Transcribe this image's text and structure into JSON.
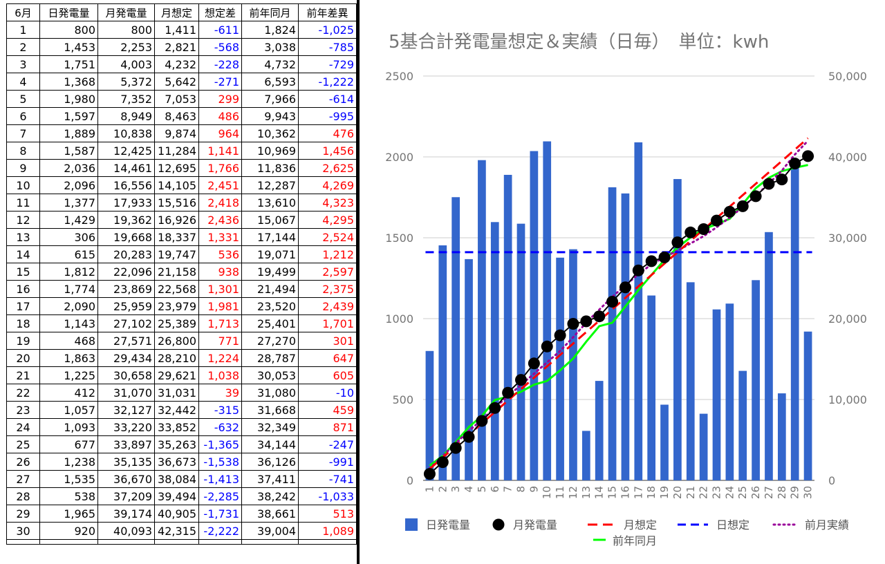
{
  "table": {
    "headers": [
      "6月",
      "日発電量",
      "月発電量",
      "月想定",
      "想定差",
      "前年同月",
      "前年差異"
    ],
    "rows": [
      [
        "1",
        "800",
        "800",
        "1,411",
        "-611",
        "1,824",
        "-1,025"
      ],
      [
        "2",
        "1,453",
        "2,253",
        "2,821",
        "-568",
        "3,038",
        "-785"
      ],
      [
        "3",
        "1,751",
        "4,003",
        "4,232",
        "-228",
        "4,732",
        "-729"
      ],
      [
        "4",
        "1,368",
        "5,372",
        "5,642",
        "-271",
        "6,593",
        "-1,222"
      ],
      [
        "5",
        "1,980",
        "7,352",
        "7,053",
        "299",
        "7,966",
        "-614"
      ],
      [
        "6",
        "1,597",
        "8,949",
        "8,463",
        "486",
        "9,943",
        "-995"
      ],
      [
        "7",
        "1,889",
        "10,838",
        "9,874",
        "964",
        "10,362",
        "476"
      ],
      [
        "8",
        "1,587",
        "12,425",
        "11,284",
        "1,141",
        "10,969",
        "1,456"
      ],
      [
        "9",
        "2,036",
        "14,461",
        "12,695",
        "1,766",
        "11,836",
        "2,625"
      ],
      [
        "10",
        "2,096",
        "16,556",
        "14,105",
        "2,451",
        "12,287",
        "4,269"
      ],
      [
        "11",
        "1,377",
        "17,933",
        "15,516",
        "2,418",
        "13,610",
        "4,323"
      ],
      [
        "12",
        "1,429",
        "19,362",
        "16,926",
        "2,436",
        "15,067",
        "4,295"
      ],
      [
        "13",
        "306",
        "19,668",
        "18,337",
        "1,331",
        "17,144",
        "2,524"
      ],
      [
        "14",
        "615",
        "20,283",
        "19,747",
        "536",
        "19,071",
        "1,212"
      ],
      [
        "15",
        "1,812",
        "22,096",
        "21,158",
        "938",
        "19,499",
        "2,597"
      ],
      [
        "16",
        "1,774",
        "23,869",
        "22,568",
        "1,301",
        "21,494",
        "2,375"
      ],
      [
        "17",
        "2,090",
        "25,959",
        "23,979",
        "1,981",
        "23,520",
        "2,439"
      ],
      [
        "18",
        "1,143",
        "27,102",
        "25,389",
        "1,713",
        "25,401",
        "1,701"
      ],
      [
        "19",
        "468",
        "27,571",
        "26,800",
        "771",
        "27,270",
        "301"
      ],
      [
        "20",
        "1,863",
        "29,434",
        "28,210",
        "1,224",
        "28,787",
        "647"
      ],
      [
        "21",
        "1,225",
        "30,658",
        "29,621",
        "1,038",
        "30,053",
        "605"
      ],
      [
        "22",
        "412",
        "31,070",
        "31,031",
        "39",
        "31,080",
        "-10"
      ],
      [
        "23",
        "1,057",
        "32,127",
        "32,442",
        "-315",
        "31,668",
        "459"
      ],
      [
        "24",
        "1,093",
        "33,220",
        "33,852",
        "-632",
        "32,349",
        "871"
      ],
      [
        "25",
        "677",
        "33,897",
        "35,263",
        "-1,365",
        "34,144",
        "-247"
      ],
      [
        "26",
        "1,238",
        "35,135",
        "36,673",
        "-1,538",
        "36,126",
        "-991"
      ],
      [
        "27",
        "1,535",
        "36,670",
        "38,084",
        "-1,413",
        "37,411",
        "-741"
      ],
      [
        "28",
        "538",
        "37,209",
        "39,494",
        "-2,285",
        "38,242",
        "-1,033"
      ],
      [
        "29",
        "1,965",
        "39,174",
        "40,905",
        "-1,731",
        "38,661",
        "513"
      ],
      [
        "30",
        "920",
        "40,093",
        "42,315",
        "-2,222",
        "39,004",
        "1,089"
      ]
    ]
  },
  "colors": {
    "negative": "#0000ff",
    "positive": "#ff0000",
    "bar": "#3366cc",
    "monthly_actual": "#000000",
    "monthly_forecast": "#ff0000",
    "daily_forecast": "#0000ff",
    "prev_month_actual": "#990099",
    "prev_year_same_month": "#00ff00",
    "title": "#757575",
    "axis_text": "#757575",
    "grid": "#cccccc"
  },
  "chart_data": {
    "type": "bar",
    "title": "5基合計発電量想定＆実績（日毎）　単位：kwh",
    "categories": [
      "1",
      "2",
      "3",
      "4",
      "5",
      "6",
      "7",
      "8",
      "9",
      "10",
      "11",
      "12",
      "13",
      "14",
      "15",
      "16",
      "17",
      "18",
      "19",
      "20",
      "21",
      "22",
      "23",
      "24",
      "25",
      "26",
      "27",
      "28",
      "29",
      "30"
    ],
    "left_axis": {
      "ticks": [
        "0",
        "500",
        "1000",
        "1500",
        "2000",
        "2500"
      ],
      "ylim": [
        0,
        2500
      ]
    },
    "right_axis": {
      "ticks": [
        "0",
        "10,000",
        "20,000",
        "30,000",
        "40,000",
        "50,000"
      ],
      "ylim": [
        0,
        50000
      ]
    },
    "grid": true,
    "legend_position": "bottom",
    "series": [
      {
        "name": "日発電量",
        "type": "bar",
        "axis": "left",
        "values": [
          800,
          1453,
          1751,
          1368,
          1980,
          1597,
          1889,
          1587,
          2036,
          2096,
          1377,
          1429,
          306,
          615,
          1812,
          1774,
          2090,
          1143,
          468,
          1863,
          1225,
          412,
          1057,
          1093,
          677,
          1238,
          1535,
          538,
          1965,
          920
        ]
      },
      {
        "name": "月発電量",
        "type": "line-markers",
        "axis": "right",
        "values": [
          800,
          2253,
          4003,
          5372,
          7352,
          8949,
          10838,
          12425,
          14461,
          16556,
          17933,
          19362,
          19668,
          20283,
          22096,
          23869,
          25959,
          27102,
          27571,
          29434,
          30658,
          31070,
          32127,
          33220,
          33897,
          35135,
          36670,
          37209,
          39174,
          40093
        ]
      },
      {
        "name": "月想定",
        "type": "dashed-line",
        "axis": "right",
        "values": [
          1411,
          2821,
          4232,
          5642,
          7053,
          8463,
          9874,
          11284,
          12695,
          14105,
          15516,
          16926,
          18337,
          19747,
          21158,
          22568,
          23979,
          25389,
          26800,
          28210,
          29621,
          31031,
          32442,
          33852,
          35263,
          36673,
          38084,
          39494,
          40905,
          42315
        ]
      },
      {
        "name": "日想定",
        "type": "dashed-line",
        "axis": "left",
        "values": [
          1411,
          1411,
          1411,
          1411,
          1411,
          1411,
          1411,
          1411,
          1411,
          1411,
          1411,
          1411,
          1411,
          1411,
          1411,
          1411,
          1411,
          1411,
          1411,
          1411,
          1411,
          1411,
          1411,
          1411,
          1411,
          1411,
          1411,
          1411,
          1411,
          1411
        ]
      },
      {
        "name": "前月実績",
        "type": "dotted-line",
        "axis": "right",
        "values": [
          1480,
          3000,
          4600,
          6100,
          7500,
          9000,
          10400,
          11800,
          13200,
          14600,
          16000,
          17700,
          19500,
          21100,
          22700,
          24100,
          25500,
          26700,
          27600,
          28400,
          29300,
          30200,
          31300,
          32500,
          33800,
          35200,
          36700,
          38300,
          40300,
          42000
        ]
      },
      {
        "name": "前年同月",
        "type": "line",
        "axis": "right",
        "values": [
          1824,
          3038,
          4732,
          6593,
          7966,
          9943,
          10362,
          10969,
          11836,
          12287,
          13610,
          15067,
          17144,
          19071,
          19499,
          21494,
          23520,
          25401,
          27270,
          28787,
          30053,
          31080,
          31668,
          32349,
          34144,
          36126,
          37411,
          38242,
          38661,
          39004
        ]
      }
    ]
  }
}
